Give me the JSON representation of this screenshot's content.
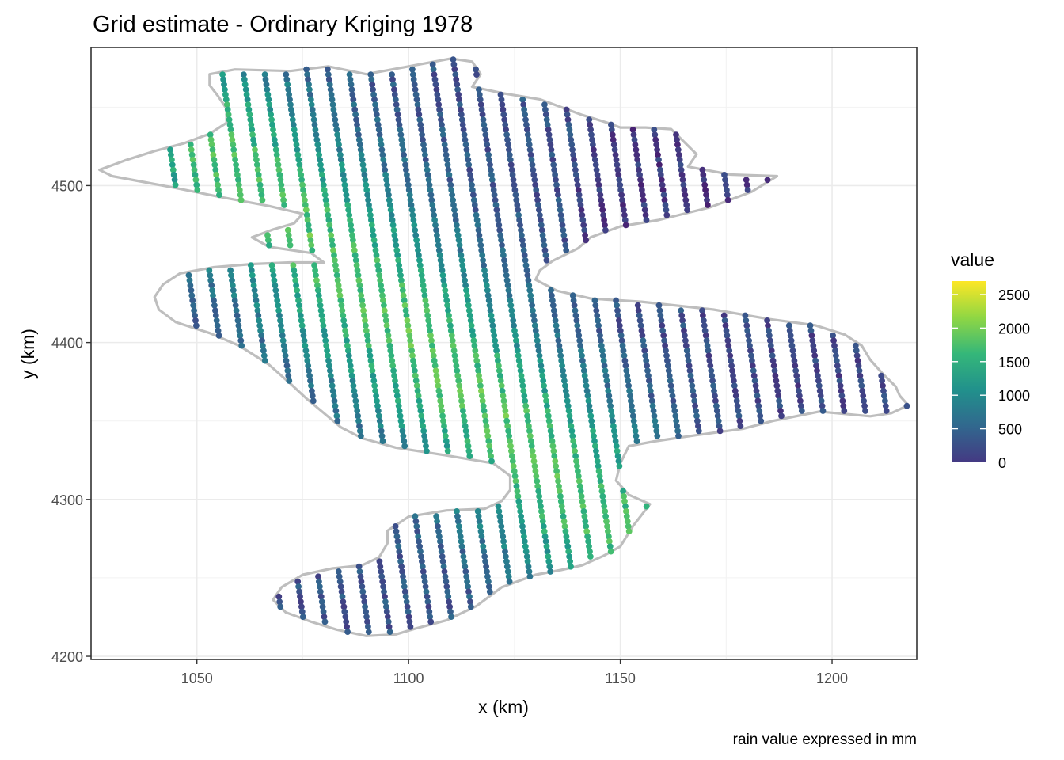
{
  "chart_data": {
    "type": "scatter",
    "title": "Grid estimate - Ordinary Kriging 1978",
    "xlabel": "x (km)",
    "ylabel": "y (km)",
    "caption": "rain value expressed in mm",
    "xlim": [
      1025,
      1220
    ],
    "ylim": [
      4198,
      4588
    ],
    "x_ticks": [
      1050,
      1100,
      1150,
      1200
    ],
    "y_ticks": [
      4200,
      4300,
      4400,
      4500
    ],
    "grid": true,
    "legend": {
      "title": "value",
      "placement": "right",
      "colorscale": "viridis",
      "range": [
        0,
        2700
      ],
      "ticks": [
        0,
        500,
        1000,
        1500,
        2000,
        2500
      ]
    },
    "boundary_color": "#bebebe",
    "boundary_outline": [
      [
        1053,
        4571
      ],
      [
        1059,
        4574
      ],
      [
        1072,
        4573
      ],
      [
        1081,
        4576
      ],
      [
        1090,
        4571
      ],
      [
        1100,
        4576
      ],
      [
        1110,
        4581
      ],
      [
        1115,
        4579
      ],
      [
        1117,
        4571
      ],
      [
        1115,
        4563
      ],
      [
        1122,
        4559
      ],
      [
        1131,
        4555
      ],
      [
        1136,
        4550
      ],
      [
        1141,
        4545
      ],
      [
        1147,
        4540
      ],
      [
        1150,
        4537
      ],
      [
        1156,
        4537
      ],
      [
        1162,
        4536
      ],
      [
        1165,
        4528
      ],
      [
        1168,
        4520
      ],
      [
        1166,
        4512
      ],
      [
        1176,
        4507
      ],
      [
        1187,
        4506
      ],
      [
        1181,
        4496
      ],
      [
        1171,
        4486
      ],
      [
        1159,
        4478
      ],
      [
        1150,
        4474
      ],
      [
        1143,
        4467
      ],
      [
        1140,
        4460
      ],
      [
        1134,
        4452
      ],
      [
        1131,
        4446
      ],
      [
        1130,
        4440
      ],
      [
        1135,
        4433
      ],
      [
        1143,
        4428
      ],
      [
        1155,
        4426
      ],
      [
        1172,
        4421
      ],
      [
        1185,
        4415
      ],
      [
        1196,
        4411
      ],
      [
        1203,
        4405
      ],
      [
        1207,
        4398
      ],
      [
        1209,
        4389
      ],
      [
        1212,
        4380
      ],
      [
        1215,
        4372
      ],
      [
        1216,
        4366
      ],
      [
        1218,
        4360
      ],
      [
        1214,
        4355
      ],
      [
        1209,
        4353
      ],
      [
        1197,
        4356
      ],
      [
        1186,
        4350
      ],
      [
        1179,
        4345
      ],
      [
        1168,
        4341
      ],
      [
        1158,
        4337
      ],
      [
        1152,
        4334
      ],
      [
        1150,
        4323
      ],
      [
        1149,
        4312
      ],
      [
        1152,
        4303
      ],
      [
        1157,
        4297
      ],
      [
        1153,
        4283
      ],
      [
        1150,
        4270
      ],
      [
        1146,
        4264
      ],
      [
        1141,
        4258
      ],
      [
        1136,
        4255
      ],
      [
        1130,
        4252
      ],
      [
        1122,
        4244
      ],
      [
        1116,
        4232
      ],
      [
        1109,
        4223
      ],
      [
        1102,
        4218
      ],
      [
        1097,
        4214
      ],
      [
        1090,
        4213
      ],
      [
        1083,
        4217
      ],
      [
        1077,
        4222
      ],
      [
        1071,
        4228
      ],
      [
        1068,
        4236
      ],
      [
        1070,
        4244
      ],
      [
        1075,
        4252
      ],
      [
        1082,
        4256
      ],
      [
        1089,
        4258
      ],
      [
        1093,
        4263
      ],
      [
        1095,
        4272
      ],
      [
        1095,
        4280
      ],
      [
        1100,
        4289
      ],
      [
        1109,
        4293
      ],
      [
        1118,
        4294
      ],
      [
        1122,
        4299
      ],
      [
        1124,
        4306
      ],
      [
        1124,
        4315
      ],
      [
        1120,
        4323
      ],
      [
        1109,
        4328
      ],
      [
        1097,
        4333
      ],
      [
        1089,
        4339
      ],
      [
        1084,
        4346
      ],
      [
        1080,
        4355
      ],
      [
        1076,
        4364
      ],
      [
        1072,
        4374
      ],
      [
        1067,
        4386
      ],
      [
        1060,
        4398
      ],
      [
        1053,
        4406
      ],
      [
        1045,
        4413
      ],
      [
        1041,
        4421
      ],
      [
        1040,
        4429
      ],
      [
        1042,
        4437
      ],
      [
        1046,
        4444
      ],
      [
        1054,
        4448
      ],
      [
        1063,
        4450
      ],
      [
        1072,
        4451
      ],
      [
        1080,
        4451
      ],
      [
        1077,
        4457
      ],
      [
        1067,
        4461
      ],
      [
        1063,
        4467
      ],
      [
        1068,
        4472
      ],
      [
        1073,
        4476
      ],
      [
        1075,
        4482
      ],
      [
        1067,
        4487
      ],
      [
        1055,
        4493
      ],
      [
        1044,
        4499
      ],
      [
        1036,
        4503
      ],
      [
        1030,
        4506
      ],
      [
        1027,
        4510
      ],
      [
        1033,
        4516
      ],
      [
        1040,
        4522
      ],
      [
        1047,
        4527
      ],
      [
        1053,
        4533
      ],
      [
        1057,
        4540
      ],
      [
        1057,
        4549
      ],
      [
        1055,
        4557
      ],
      [
        1053,
        4564
      ],
      [
        1053,
        4571
      ]
    ]
  }
}
